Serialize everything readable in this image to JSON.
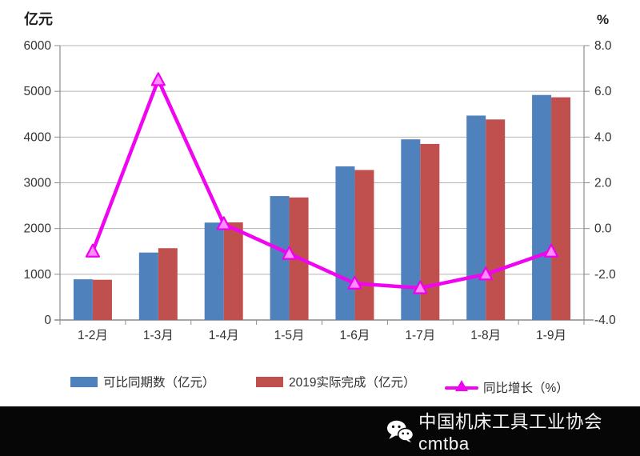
{
  "page": {
    "background": "#ffffff",
    "footer_background": "#060606"
  },
  "chart_data": {
    "type": "bar+line combo",
    "categories": [
      "1-2月",
      "1-3月",
      "1-4月",
      "1-5月",
      "1-6月",
      "1-7月",
      "1-8月",
      "1-9月"
    ],
    "series": [
      {
        "name": "可比同期数（亿元）",
        "type": "bar",
        "axis": "left",
        "color": "#4f81bd",
        "values": [
          890,
          1475,
          2130,
          2710,
          3360,
          3950,
          4470,
          4920
        ]
      },
      {
        "name": "2019实际完成（亿元）",
        "type": "bar",
        "axis": "left",
        "color": "#c0504d",
        "values": [
          880,
          1570,
          2135,
          2680,
          3280,
          3850,
          4385,
          4870
        ]
      },
      {
        "name": "同比增长（%）",
        "type": "line",
        "axis": "right",
        "color": "#f005f0",
        "marker": "triangle-up",
        "values": [
          -1.0,
          6.5,
          0.2,
          -1.1,
          -2.4,
          -2.6,
          -2.0,
          -1.0
        ]
      }
    ],
    "left_axis": {
      "title": "亿元",
      "min": 0,
      "max": 6000,
      "tick_step": 1000,
      "ticks": [
        "6000",
        "5000",
        "4000",
        "3000",
        "2000",
        "1000",
        "0"
      ]
    },
    "right_axis": {
      "title": "%",
      "min": -4.0,
      "max": 8.0,
      "tick_step": 2.0,
      "ticks": [
        "8.0",
        "6.0",
        "4.0",
        "2.0",
        "0.0",
        "-2.0",
        "-4.0"
      ]
    },
    "grid": true,
    "legend_position": "bottom",
    "colors": {
      "gridline": "#b3b3b3",
      "axis_line": "#8c8c8c",
      "tick_text": "#333333"
    }
  },
  "legend": {
    "items": [
      {
        "swatch": "blue-bar-swatch",
        "label": "可比同期数（亿元）"
      },
      {
        "swatch": "red-bar-swatch",
        "label": "2019实际完成（亿元）"
      },
      {
        "swatch": "magenta-line-swatch",
        "label": "同比增长（%）"
      }
    ]
  },
  "footer": {
    "icon": "wechat-icon",
    "text": "中国机床工具工业协会cmtba",
    "text_color": "#f4f4f4"
  }
}
